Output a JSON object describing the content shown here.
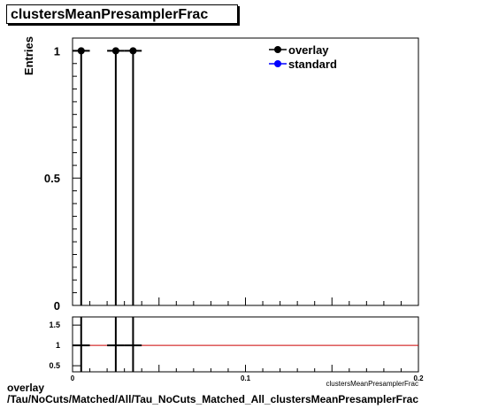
{
  "title": "clustersMeanPresamplerFrac",
  "footer": {
    "line1": "overlay",
    "line2": "/Tau/NoCuts/Matched/All/Tau_NoCuts_Matched_All_clustersMeanPresamplerFrac"
  },
  "chart_data": [
    {
      "type": "scatter",
      "ylabel": "Entries",
      "xlabel": "clustersMeanPresamplerFrac",
      "xlim": [
        0,
        0.2
      ],
      "ylim": [
        0,
        1.05
      ],
      "yticks": [
        0,
        0.5,
        1
      ],
      "ytick_labels": [
        "0",
        "0.5",
        "1"
      ],
      "legend": {
        "placement": "top-right",
        "entries": [
          "overlay",
          "standard"
        ]
      },
      "series": [
        {
          "name": "overlay",
          "color": "#000000",
          "points": [
            {
              "x": 0.005,
              "y": 1,
              "xerr": 0.005
            },
            {
              "x": 0.025,
              "y": 1,
              "xerr": 0.005
            },
            {
              "x": 0.035,
              "y": 1,
              "xerr": 0.005
            }
          ]
        },
        {
          "name": "standard",
          "color": "#0000ff",
          "points": []
        }
      ]
    },
    {
      "type": "line",
      "xlim": [
        0,
        0.2
      ],
      "ylim": [
        0.35,
        1.7
      ],
      "yticks": [
        0.5,
        1,
        1.5
      ],
      "ytick_labels": [
        "0.5",
        "1",
        "1.5"
      ],
      "xticks": [
        0,
        0.1,
        0.2
      ],
      "xtick_labels": [
        "0",
        "0.1",
        "0.2"
      ],
      "reference_line": {
        "y": 1,
        "color": "#cc0000"
      },
      "points": [
        {
          "x": 0.005,
          "y": 1,
          "xerr": 0.005
        },
        {
          "x": 0.025,
          "y": 1,
          "xerr": 0.005
        },
        {
          "x": 0.035,
          "y": 1,
          "xerr": 0.005
        }
      ]
    }
  ]
}
